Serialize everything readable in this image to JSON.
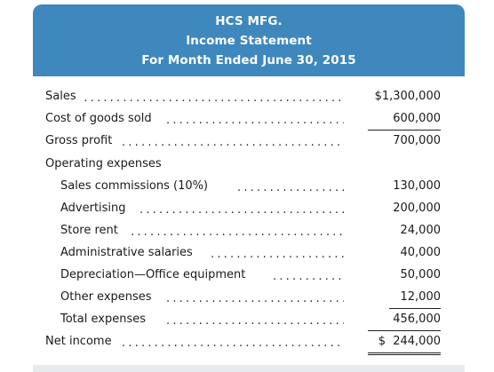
{
  "header": {
    "company": "HCS MFG.",
    "statement": "Income Statement",
    "period": "For Month Ended June 30, 2015"
  },
  "leader_text": "..............................................",
  "rows": [
    {
      "label": "Sales",
      "amount": "$1,300,000"
    },
    {
      "label": "Cost of goods sold",
      "amount": "600,000"
    },
    {
      "label": "Gross profit",
      "amount": "700,000"
    },
    {
      "label": "Operating expenses",
      "amount": ""
    },
    {
      "label": "Sales commissions (10%)",
      "amount": "130,000"
    },
    {
      "label": "Advertising",
      "amount": "200,000"
    },
    {
      "label": "Store rent",
      "amount": "24,000"
    },
    {
      "label": "Administrative salaries",
      "amount": "40,000"
    },
    {
      "label": "Depreciation—Office equipment",
      "amount": "50,000"
    },
    {
      "label": "Other expenses",
      "amount": "12,000"
    },
    {
      "label": "Total expenses",
      "amount": "456,000"
    },
    {
      "label": "Net income",
      "amount": "$  244,000"
    }
  ]
}
